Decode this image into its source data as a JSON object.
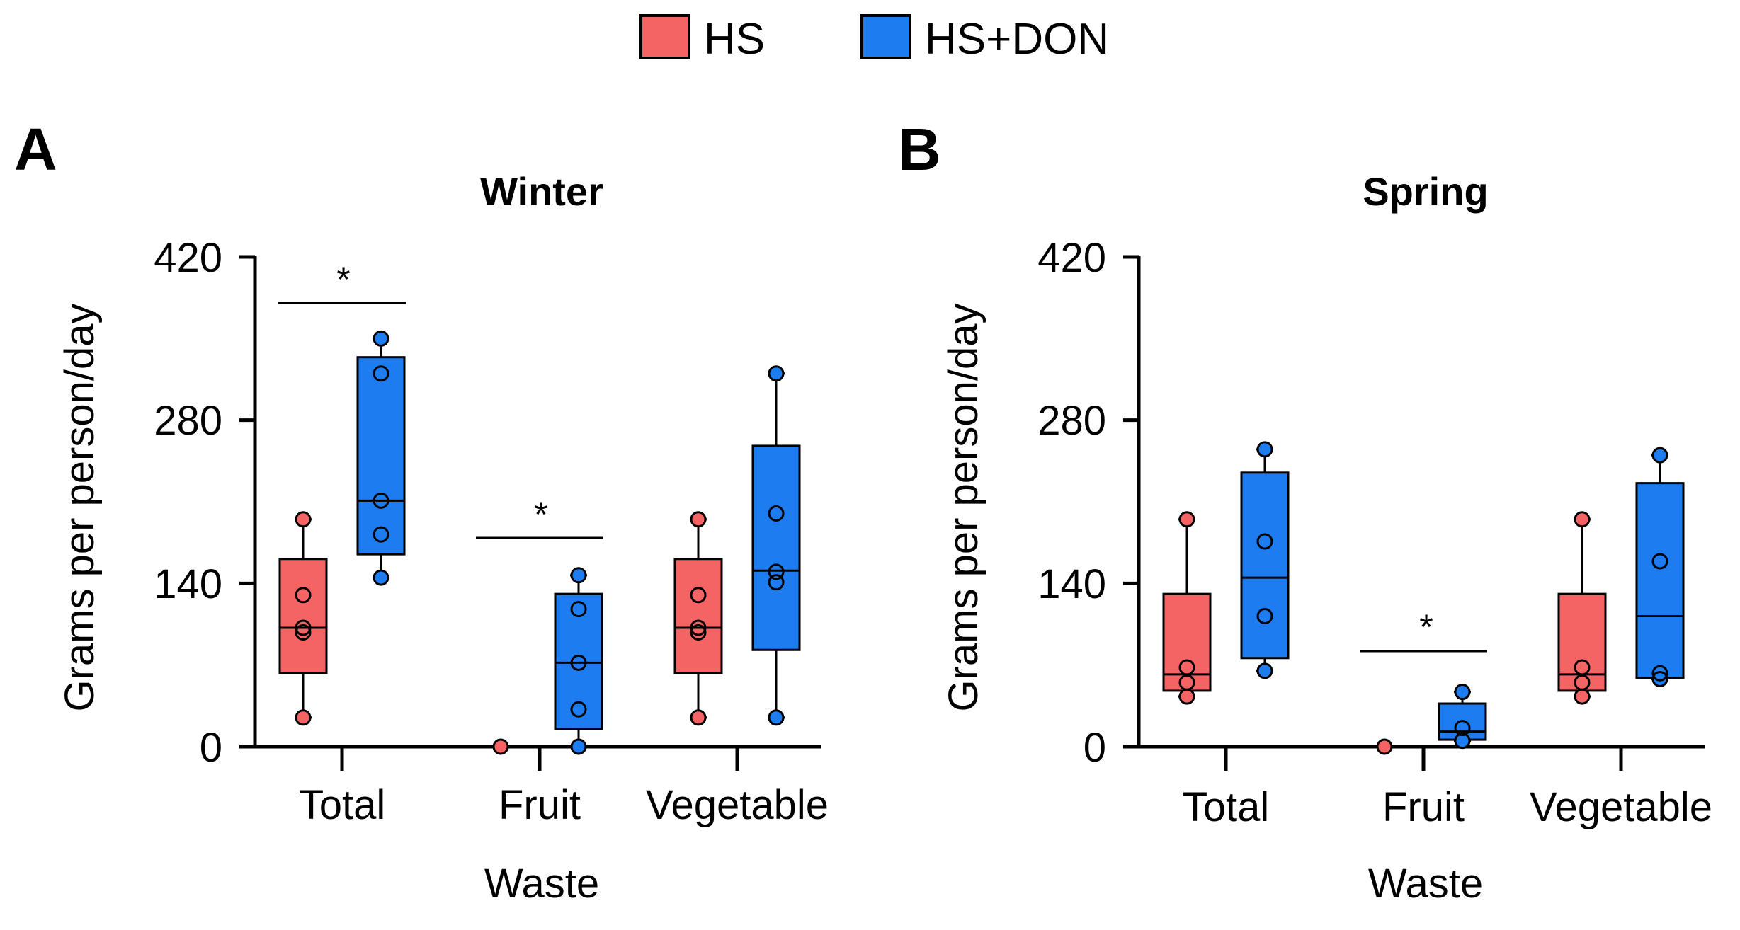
{
  "legend": [
    {
      "name": "HS",
      "color": "#F46464"
    },
    {
      "name": "HS+DON",
      "color": "#1C7CF0"
    }
  ],
  "chart_data": [
    {
      "type": "box",
      "panel_label": "A",
      "title": "Winter",
      "xlabel": "Waste",
      "ylabel": "Grams per person/day",
      "ylim": [
        0,
        420
      ],
      "yticks": [
        "0",
        "140",
        "280",
        "420"
      ],
      "categories": [
        "Total",
        "Fruit",
        "Vegetable"
      ],
      "series": [
        {
          "name": "HS",
          "boxes": [
            {
              "min": 25,
              "q1": 63,
              "median": 102,
              "q3": 161,
              "max": 195,
              "points": [
                25,
                98,
                102,
                130,
                195
              ]
            },
            {
              "min": 0,
              "q1": 0,
              "median": 0,
              "q3": 0,
              "max": 0,
              "points": [
                0
              ]
            },
            {
              "min": 25,
              "q1": 63,
              "median": 102,
              "q3": 161,
              "max": 195,
              "points": [
                25,
                98,
                102,
                130,
                195
              ]
            }
          ]
        },
        {
          "name": "HS+DON",
          "boxes": [
            {
              "min": 145,
              "q1": 165,
              "median": 211,
              "q3": 334,
              "max": 350,
              "points": [
                145,
                182,
                211,
                320,
                350
              ]
            },
            {
              "min": 0,
              "q1": 15,
              "median": 72,
              "q3": 131,
              "max": 147,
              "points": [
                0,
                32,
                72,
                118,
                147
              ]
            },
            {
              "min": 25,
              "q1": 83,
              "median": 151,
              "q3": 258,
              "max": 320,
              "points": [
                25,
                141,
                150,
                200,
                320
              ]
            }
          ]
        }
      ],
      "significance": [
        {
          "category": "Total",
          "label": "*"
        },
        {
          "category": "Fruit",
          "label": "*"
        }
      ]
    },
    {
      "type": "box",
      "panel_label": "B",
      "title": "Spring",
      "xlabel": "Waste",
      "ylabel": "Grams per person/day",
      "ylim": [
        0,
        420
      ],
      "yticks": [
        "0",
        "140",
        "280",
        "420"
      ],
      "categories": [
        "Total",
        "Fruit",
        "Vegetable"
      ],
      "series": [
        {
          "name": "HS",
          "boxes": [
            {
              "min": 43,
              "q1": 48,
              "median": 62,
              "q3": 131,
              "max": 195,
              "points": [
                43,
                55,
                68,
                195
              ]
            },
            {
              "min": 0,
              "q1": 0,
              "median": 0,
              "q3": 0,
              "max": 0,
              "points": [
                0
              ]
            },
            {
              "min": 43,
              "q1": 48,
              "median": 62,
              "q3": 131,
              "max": 195,
              "points": [
                43,
                55,
                68,
                195
              ]
            }
          ]
        },
        {
          "name": "HS+DON",
          "boxes": [
            {
              "min": 65,
              "q1": 76,
              "median": 145,
              "q3": 235,
              "max": 255,
              "points": [
                65,
                112,
                176,
                255
              ]
            },
            {
              "min": 5,
              "q1": 6,
              "median": 13,
              "q3": 37,
              "max": 47,
              "points": [
                5,
                16,
                47
              ]
            },
            {
              "min": 58,
              "q1": 59,
              "median": 112,
              "q3": 226,
              "max": 250,
              "points": [
                58,
                63,
                159,
                250
              ]
            }
          ]
        }
      ],
      "significance": [
        {
          "category": "Fruit",
          "label": "*"
        }
      ]
    }
  ]
}
